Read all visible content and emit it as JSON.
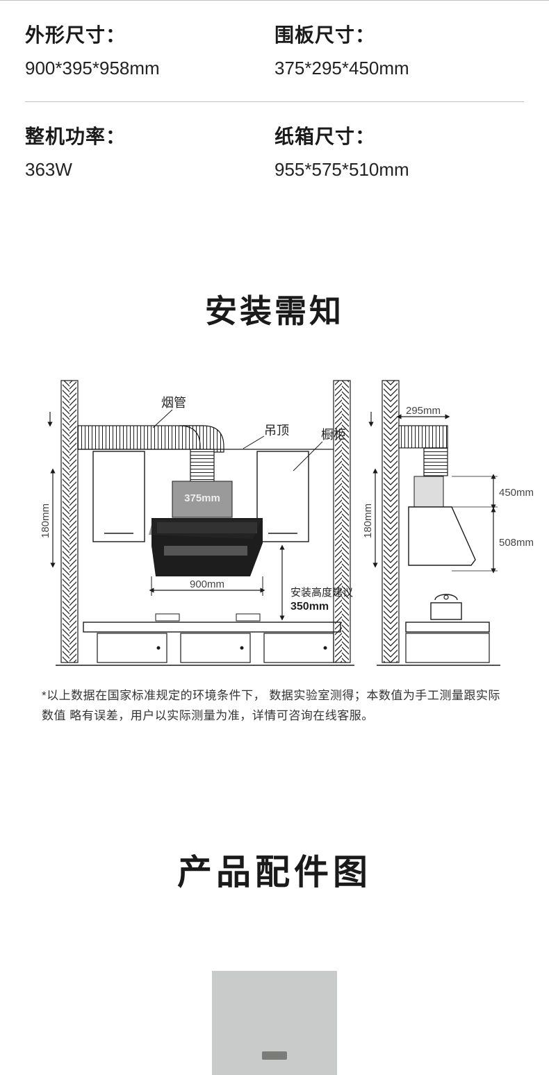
{
  "specs": {
    "rows": [
      [
        {
          "label": "外形尺寸：",
          "value": "900*395*958mm"
        },
        {
          "label": "围板尺寸：",
          "value": "375*295*450mm"
        }
      ],
      [
        {
          "label": "整机功率：",
          "value": "363W"
        },
        {
          "label": "纸箱尺寸：",
          "value": "955*575*510mm"
        }
      ]
    ]
  },
  "install": {
    "title": "安装需知",
    "footnote": "*以上数据在国家标准规定的环境条件下，  数据实验室测得；本数值为手工测量跟实际数值 略有误差，用户以实际测量为准，详情可咨询在线客服。",
    "diagram": {
      "labels": {
        "pipe": "烟管",
        "ceiling": "吊顶",
        "cabinet": "橱柜",
        "height_advice_line1": "安装高度建议",
        "height_advice_line2": "350mm"
      },
      "dims": {
        "left_height": "180mm",
        "width": "900mm",
        "cover": "375mm",
        "right_top_w": "295mm",
        "right_h1": "450mm",
        "right_h2": "508mm",
        "right_left_h": "180mm"
      },
      "colors": {
        "stroke": "#1a1a1a",
        "hatch": "#1a1a1a",
        "hood_black": "#1d1d1d",
        "hood_glass": "#3a3a3a",
        "hood_cover": "#9a9a9a",
        "cabinet_fill": "#ffffff",
        "dim_text": "#444444",
        "label_text": "#222222"
      },
      "fontsize": {
        "label": 18,
        "dim": 15,
        "dim_bold": 16
      }
    }
  },
  "accessories": {
    "title": "产品配件图"
  }
}
